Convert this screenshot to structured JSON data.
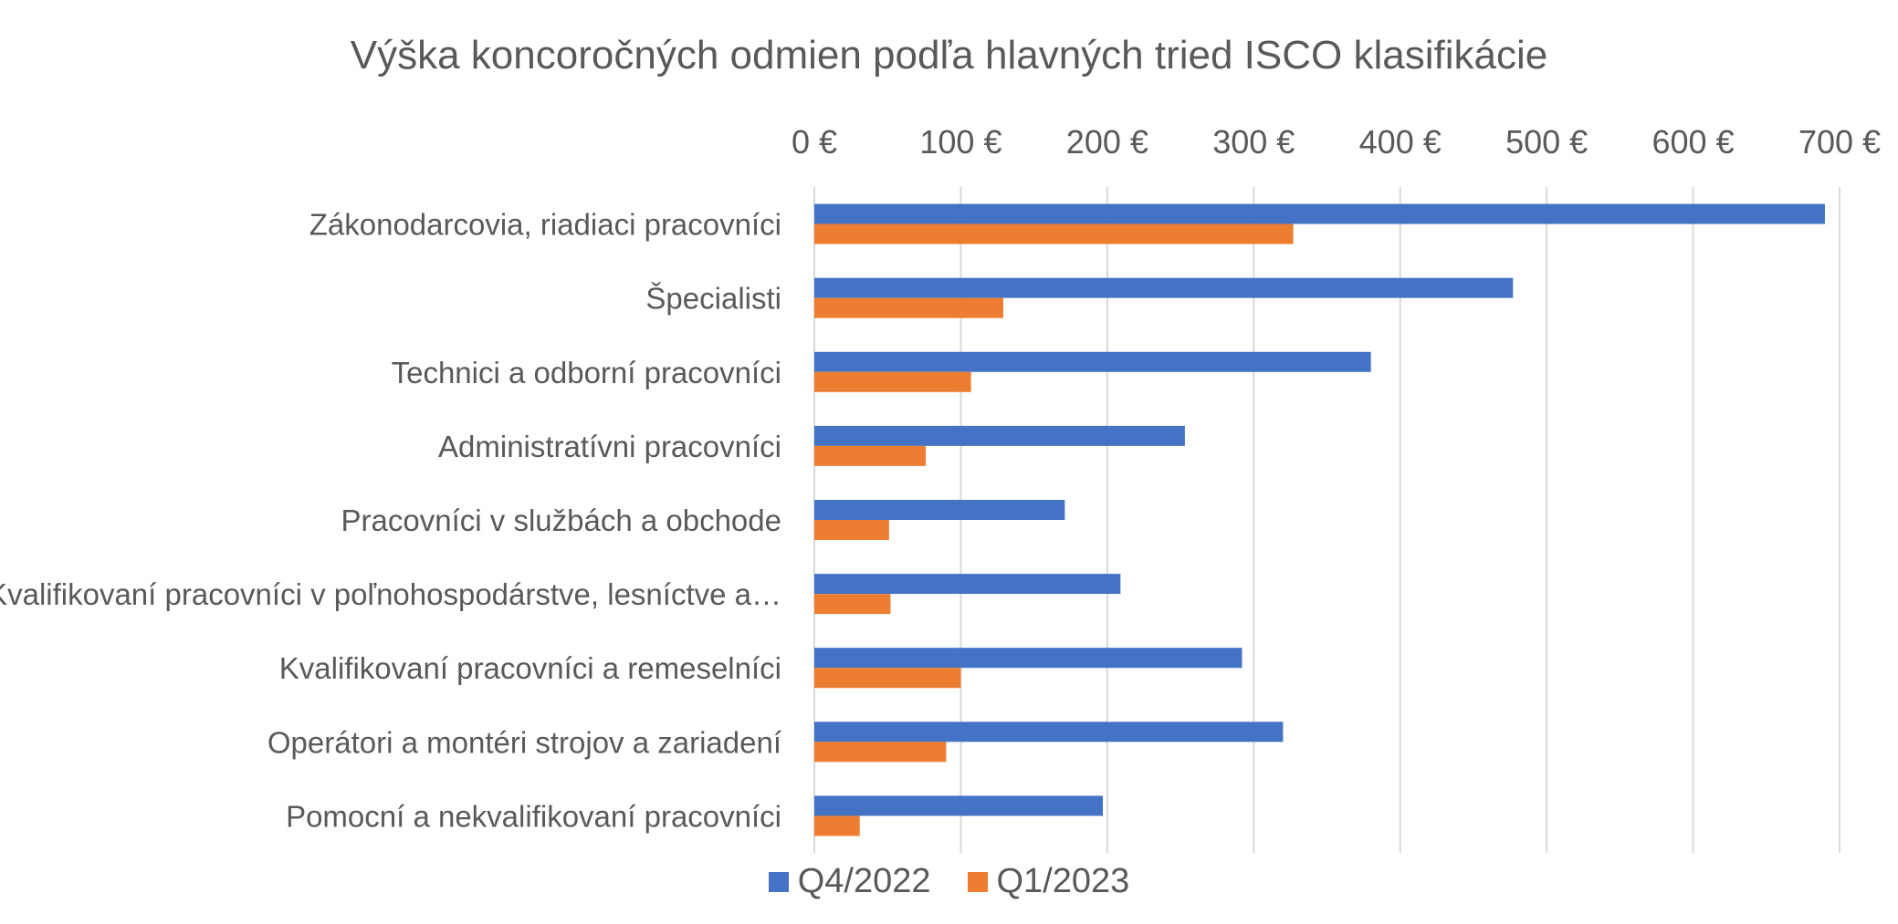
{
  "chart_data": {
    "type": "bar",
    "orientation": "horizontal",
    "title": "Výška koncoročných odmien podľa hlavných tried ISCO klasifikácie",
    "xlabel": "",
    "ylabel": "",
    "x_axis_position": "top",
    "xlim": [
      0,
      700
    ],
    "x_ticks": [
      0,
      100,
      200,
      300,
      400,
      500,
      600,
      700
    ],
    "x_tick_labels": [
      "0 €",
      "100 €",
      "200 €",
      "300 €",
      "400 €",
      "500 €",
      "600 €",
      "700 €"
    ],
    "grid": true,
    "legend_position": "bottom",
    "categories": [
      "Zákonodarcovia, riadiaci pracovníci",
      "Špecialisti",
      "Technici a odborní pracovníci",
      "Administratívni pracovníci",
      "Pracovníci v službách a obchode",
      "Kvalifikovaní pracovníci v poľnohospodárstve, lesníctve a…",
      "Kvalifikovaní pracovníci a remeselníci",
      "Operátori a montéri strojov a zariadení",
      "Pomocní a nekvalifikovaní pracovníci"
    ],
    "series": [
      {
        "name": "Q4/2022",
        "color": "#4472C4",
        "values": [
          690,
          477,
          380,
          253,
          171,
          209,
          292,
          320,
          197
        ]
      },
      {
        "name": "Q1/2023",
        "color": "#ED7D31",
        "values": [
          327,
          129,
          107,
          76,
          51,
          52,
          100,
          90,
          31
        ]
      }
    ]
  }
}
